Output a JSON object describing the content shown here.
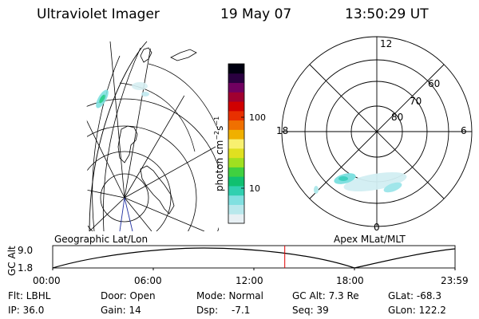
{
  "header": {
    "instrument": "Ultraviolet Imager",
    "date": "19 May 07",
    "time": "13:50:29 UT"
  },
  "colorbar": {
    "label": "photon cm⁻²s⁻¹",
    "label_main": "photon cm",
    "sup1": "−2",
    "mid": "s",
    "sup2": "−1",
    "ticks": [
      {
        "label": "100",
        "value": 100
      },
      {
        "label": "10",
        "value": 10
      }
    ],
    "colors": [
      "#e8f0f4",
      "#b8e8ec",
      "#80e0e0",
      "#30d0b0",
      "#10c070",
      "#40d040",
      "#a0e020",
      "#e0e020",
      "#f8f070",
      "#f0b000",
      "#f07000",
      "#e83000",
      "#d00000",
      "#a00030",
      "#700060",
      "#2a0040",
      "#000010"
    ]
  },
  "polar_plot": {
    "labels": [
      "12",
      "6",
      "0",
      "18",
      "60",
      "70",
      "80"
    ],
    "coordinate_system": "Apex MLat/MLT"
  },
  "geo_plot": {
    "coordinate_system": "Geographic Lat/Lon"
  },
  "timeline": {
    "ylabel": "GC Alt",
    "y_ticks": [
      "9.0",
      "1.8"
    ],
    "x_ticks": [
      "00:00",
      "06:00",
      "12:00",
      "18:00",
      "23:59"
    ],
    "current_time": "13:50:29",
    "current_fraction": 0.5767
  },
  "info": {
    "flt": "Flt: LBHL",
    "ip": "IP: 36.0",
    "door": "Door: Open",
    "gain": "Gain: 14",
    "mode": "Mode: Normal",
    "dsp_label": "Dsp:",
    "dsp_value": "-7.1",
    "gcalt": "GC Alt: 7.3 Re",
    "seq": "Seq: 39",
    "glat": "GLat: -68.3",
    "glon": "GLon: 122.2"
  }
}
